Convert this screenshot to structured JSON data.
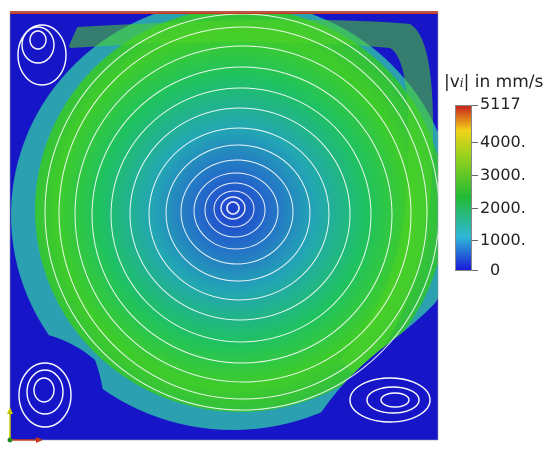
{
  "legend": {
    "quantity": "|v",
    "subscript": "i",
    "close": "|",
    "unit_text": " in mm/s",
    "ticks": [
      "5117",
      "4000.",
      "3000.",
      "2000.",
      "1000.",
      "0"
    ]
  },
  "colors": {
    "min": "#1a1ad8",
    "low": "#2fb6d8",
    "mid": "#22bb33",
    "high": "#f2d21a",
    "max": "#c8261c",
    "streamline": "#ffffff",
    "lid": "#c83a1c"
  }
}
